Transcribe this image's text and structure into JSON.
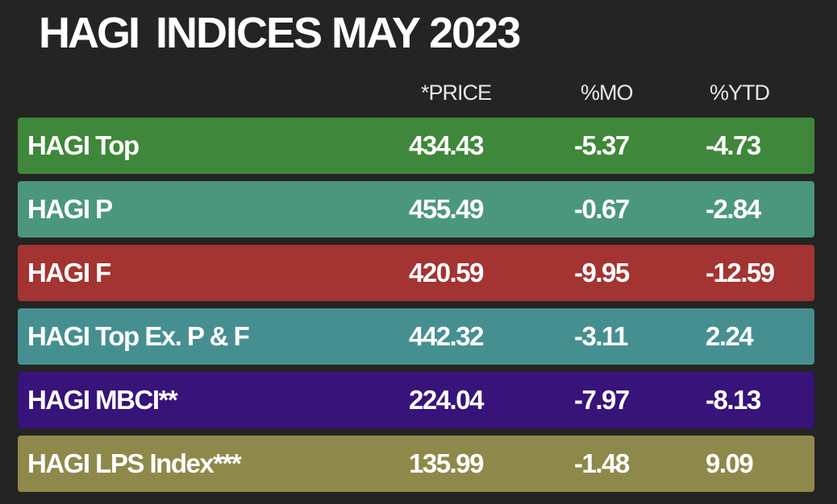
{
  "title": {
    "brand": "HAGI",
    "rest": "INDICES MAY 2023"
  },
  "table": {
    "columns": [
      "*PRICE",
      "%MO",
      "%YTD"
    ],
    "rows": [
      {
        "name": "HAGI Top",
        "price": 434.43,
        "mo": -5.37,
        "ytd": -4.73,
        "color": "#3f873a"
      },
      {
        "name": "HAGI P",
        "price": 455.49,
        "mo": -0.67,
        "ytd": -2.84,
        "color": "#4b977e"
      },
      {
        "name": "HAGI F",
        "price": 420.59,
        "mo": -9.95,
        "ytd": -12.59,
        "color": "#a33431"
      },
      {
        "name": "HAGI Top Ex. P & F",
        "price": 442.32,
        "mo": -3.11,
        "ytd": 2.24,
        "color": "#468f91"
      },
      {
        "name": "HAGI MBCI**",
        "price": 224.04,
        "mo": -7.97,
        "ytd": -8.13,
        "color": "#37137a"
      },
      {
        "name": "HAGI LPS Index***",
        "price": 135.99,
        "mo": -1.48,
        "ytd": 9.09,
        "color": "#8e894b"
      }
    ]
  }
}
